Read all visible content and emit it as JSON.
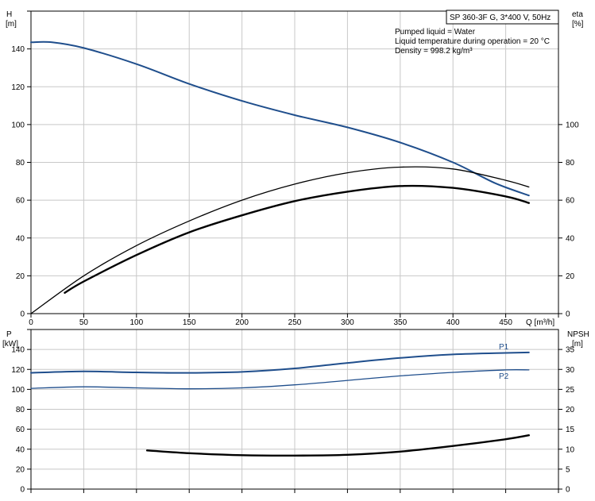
{
  "chart_data": [
    {
      "type": "line",
      "title": "SP 360-3F G, 3*400 V, 50Hz",
      "info": [
        "Pumped liquid = Water",
        "Liquid temperature during operation = 20 °C",
        "Density = 998.2 kg/m³"
      ],
      "xlabel": "Q [m³/h]",
      "ylabel_left": [
        "H",
        "[m]"
      ],
      "ylabel_right": [
        "eta",
        "[%]"
      ],
      "xlim": [
        0,
        500
      ],
      "ylim_left": [
        0,
        160
      ],
      "ylim_right": [
        0,
        160
      ],
      "x_ticks": [
        "0",
        "50",
        "100",
        "150",
        "200",
        "250",
        "300",
        "350",
        "400",
        "450"
      ],
      "y_ticks_left": [
        "0",
        "20",
        "40",
        "60",
        "80",
        "100",
        "120",
        "140"
      ],
      "y_ticks_right": [
        "0",
        "20",
        "40",
        "60",
        "80",
        "100"
      ],
      "grid": true,
      "series": [
        {
          "name": "H",
          "color": "#1f4e8c",
          "width": 2,
          "axis": "left",
          "x": [
            0,
            20,
            50,
            100,
            150,
            200,
            250,
            300,
            350,
            400,
            440,
            472
          ],
          "y": [
            143.5,
            143.5,
            140.5,
            132,
            121.5,
            112.5,
            105,
            98.5,
            90.5,
            80,
            69,
            62.5
          ]
        },
        {
          "name": "eta",
          "color": "#000000",
          "width": 1.3,
          "axis": "right",
          "x": [
            0,
            50,
            100,
            150,
            200,
            250,
            300,
            350,
            400,
            450,
            472
          ],
          "y": [
            0,
            20,
            36,
            49,
            60,
            68.5,
            74.5,
            77.5,
            76.5,
            70.5,
            67
          ]
        },
        {
          "name": "eta_lower",
          "color": "#000000",
          "width": 2.4,
          "axis": "right",
          "x": [
            32,
            50,
            100,
            150,
            200,
            250,
            300,
            350,
            400,
            450,
            472
          ],
          "y": [
            11,
            17,
            31,
            43,
            52,
            59.5,
            64.5,
            67.5,
            66.5,
            62,
            58.5
          ]
        }
      ]
    },
    {
      "type": "line",
      "xlim": [
        0,
        500
      ],
      "ylabel_left": [
        "P",
        "[kW]"
      ],
      "ylabel_right": [
        "NPSH",
        "[m]"
      ],
      "ylim_left": [
        0,
        160
      ],
      "ylim_right": [
        0,
        40
      ],
      "y_ticks_left": [
        "0",
        "20",
        "40",
        "60",
        "80",
        "100",
        "120",
        "140"
      ],
      "y_ticks_right": [
        "0",
        "5",
        "10",
        "15",
        "20",
        "25",
        "30",
        "35"
      ],
      "grid": true,
      "series": [
        {
          "name": "P1",
          "color": "#1f4e8c",
          "width": 2,
          "axis": "left",
          "x": [
            0,
            50,
            100,
            150,
            200,
            250,
            300,
            350,
            400,
            450,
            472
          ],
          "y": [
            116.5,
            118,
            117,
            116.5,
            117.5,
            121,
            126.5,
            131.5,
            135,
            136.5,
            137
          ]
        },
        {
          "name": "P2",
          "color": "#1f4e8c",
          "width": 1.3,
          "axis": "left",
          "x": [
            0,
            50,
            100,
            150,
            200,
            250,
            300,
            350,
            400,
            450,
            472
          ],
          "y": [
            101,
            102.5,
            101.5,
            100.5,
            101.5,
            104.5,
            109,
            113.5,
            117,
            119.5,
            119.5
          ]
        },
        {
          "name": "NPSH",
          "color": "#000000",
          "width": 2.4,
          "axis": "right",
          "x": [
            110,
            150,
            200,
            250,
            300,
            350,
            400,
            450,
            472
          ],
          "y": [
            9.7,
            9.0,
            8.5,
            8.4,
            8.6,
            9.4,
            10.8,
            12.5,
            13.5
          ]
        }
      ]
    }
  ]
}
